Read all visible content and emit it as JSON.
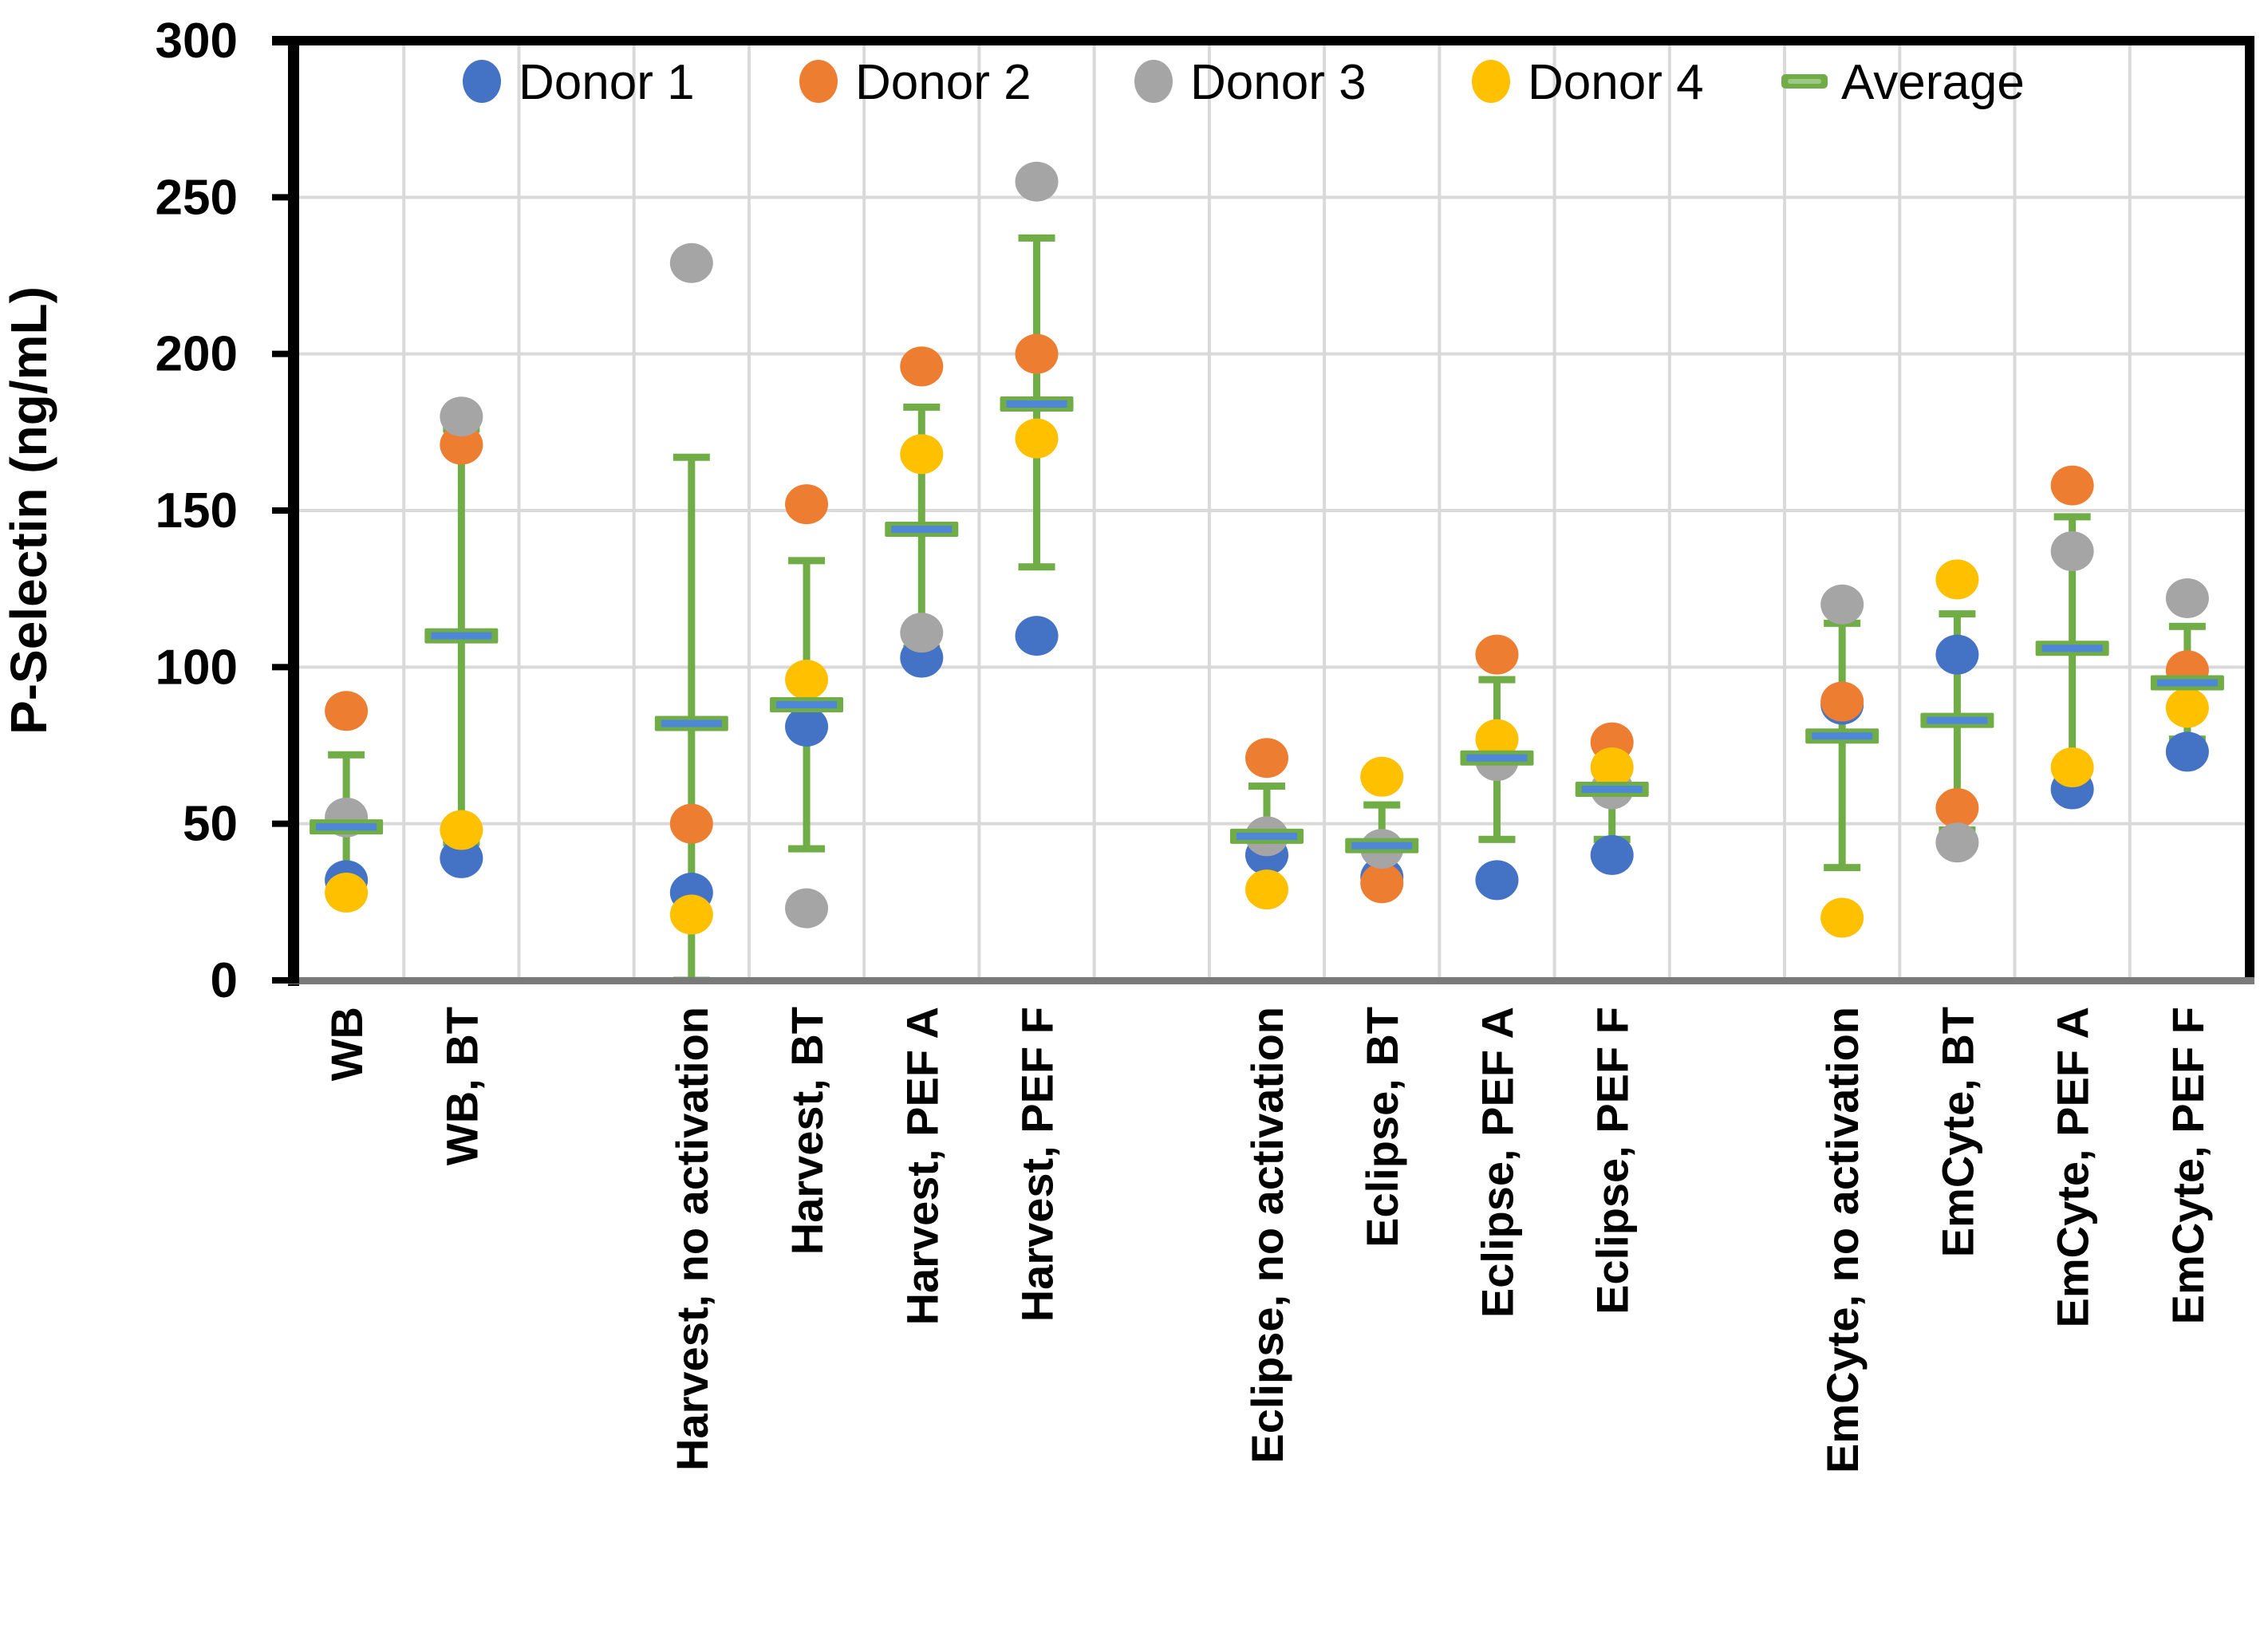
{
  "chart_data": {
    "type": "scatter",
    "title": "",
    "xlabel": "",
    "ylabel": "P-Selectin (ng/mL)",
    "ylim": [
      0,
      300
    ],
    "yticks": [
      0,
      50,
      100,
      150,
      200,
      250,
      300
    ],
    "grid": "both",
    "legend_position": "top-inside",
    "colors": {
      "donor1": "#4472C4",
      "donor2": "#ED7D31",
      "donor3": "#A5A5A5",
      "donor4": "#FFC000",
      "average_outer": "#70AD47",
      "average_inner": "#4E86D8",
      "error_bar": "#70AD47",
      "gridline": "#D9D9D9",
      "axis_black": "#000000",
      "axis_bottom": "#7A7A7A",
      "legend_dash_inner": "#9DC986"
    },
    "legend": [
      {
        "label": "Donor 1",
        "color": "#4472C4",
        "marker": "circle"
      },
      {
        "label": "Donor 2",
        "color": "#ED7D31",
        "marker": "circle"
      },
      {
        "label": "Donor 3",
        "color": "#A5A5A5",
        "marker": "circle"
      },
      {
        "label": "Donor 4",
        "color": "#FFC000",
        "marker": "circle"
      },
      {
        "label": "Average",
        "color": "#70AD47",
        "marker": "dash"
      }
    ],
    "categories": [
      {
        "label": "WB",
        "donor1": 32,
        "donor2": 86,
        "donor3": 52,
        "donor4": 28,
        "average": 49,
        "err_lo": 27,
        "err_hi": 72
      },
      {
        "label": "WB, BT",
        "donor1": 39,
        "donor2": 171,
        "donor3": 180,
        "donor4": 48,
        "average": 110,
        "err_lo": 44,
        "err_hi": 176
      },
      {
        "label": "Harvest, no activation",
        "donor1": 28,
        "donor2": 50,
        "donor3": 229,
        "donor4": 21,
        "average": 82,
        "err_lo": 0,
        "err_hi": 167
      },
      {
        "label": "Harvest, BT",
        "donor1": 81,
        "donor2": 152,
        "donor3": 23,
        "donor4": 96,
        "average": 88,
        "err_lo": 42,
        "err_hi": 134
      },
      {
        "label": "Harvest, PEF A",
        "donor1": 103,
        "donor2": 196,
        "donor3": 111,
        "donor4": 168,
        "average": 144,
        "err_lo": 106,
        "err_hi": 183
      },
      {
        "label": "Harvest, PEF F",
        "donor1": 110,
        "donor2": 200,
        "donor3": 255,
        "donor4": 173,
        "average": 184,
        "err_lo": 132,
        "err_hi": 237
      },
      {
        "label": "Eclipse, no activation",
        "donor1": 40,
        "donor2": 71,
        "donor3": 46,
        "donor4": 29,
        "average": 46,
        "err_lo": 31,
        "err_hi": 62
      },
      {
        "label": "Eclipse, BT",
        "donor1": 33,
        "donor2": 31,
        "donor3": 42,
        "donor4": 65,
        "average": 43,
        "err_lo": 29,
        "err_hi": 56
      },
      {
        "label": "Eclipse, PEF A",
        "donor1": 32,
        "donor2": 104,
        "donor3": 70,
        "donor4": 77,
        "average": 71,
        "err_lo": 45,
        "err_hi": 96
      },
      {
        "label": "Eclipse, PEF F",
        "donor1": 40,
        "donor2": 76,
        "donor3": 61,
        "donor4": 68,
        "average": 61,
        "err_lo": 45,
        "err_hi": 76
      },
      {
        "label": "EmCyte, no activation",
        "donor1": 88,
        "donor2": 89,
        "donor3": 120,
        "donor4": 20,
        "average": 78,
        "err_lo": 36,
        "err_hi": 114
      },
      {
        "label": "EmCyte, BT",
        "donor1": 104,
        "donor2": 55,
        "donor3": 44,
        "donor4": 128,
        "average": 83,
        "err_lo": 48,
        "err_hi": 117
      },
      {
        "label": "EmCyte, PEF A",
        "donor1": 61,
        "donor2": 158,
        "donor3": 137,
        "donor4": 68,
        "average": 106,
        "err_lo": 64,
        "err_hi": 148
      },
      {
        "label": "EmCyte, PEF F",
        "donor1": 73,
        "donor2": 99,
        "donor3": 122,
        "donor4": 87,
        "average": 95,
        "err_lo": 77,
        "err_hi": 113
      }
    ]
  }
}
